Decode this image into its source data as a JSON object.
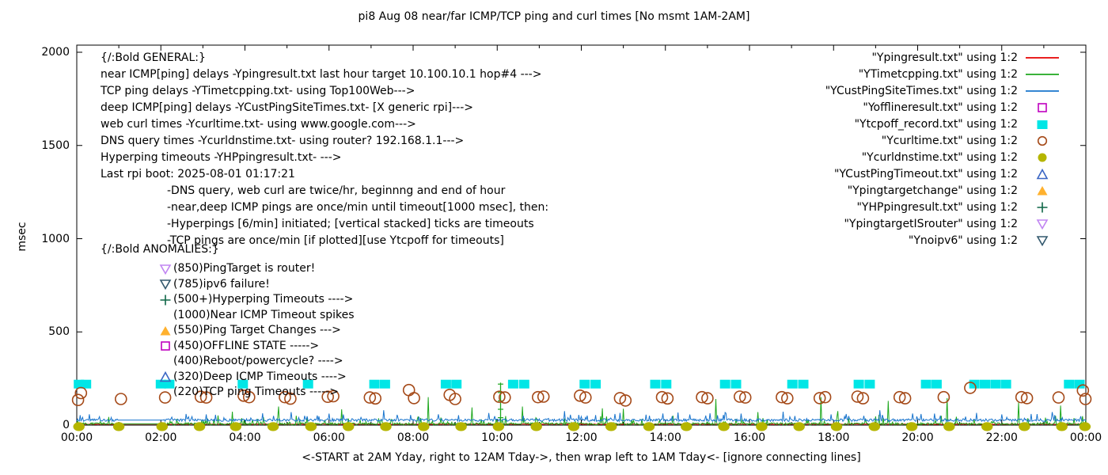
{
  "title": "pi8 Aug 08  near/far ICMP/TCP ping and curl times [No msmt 1AM-2AM]",
  "xlabel": "<-START at 2AM Yday, right to 12AM Tday->, then wrap left to 1AM Tday<- [ignore connecting lines]",
  "general": {
    "lines": [
      {
        "text": "{/:Bold GENERAL:}",
        "indent": 0
      },
      {
        "text": "near ICMP[ping] delays -Ypingresult.txt last hour target 10.100.10.1 hop#4 --->",
        "indent": 0
      },
      {
        "text": "TCP ping delays -YTimetcpping.txt- using Top100Web--->",
        "indent": 0
      },
      {
        "text": "deep ICMP[ping] delays -YCustPingSiteTimes.txt- [X generic rpi]--->",
        "indent": 0
      },
      {
        "text": "web curl times -Ycurltime.txt- using www.google.com--->",
        "indent": 0
      },
      {
        "text": "DNS query times -Ycurldnstime.txt- using router? 192.168.1.1--->",
        "indent": 0
      },
      {
        "text": "Hyperping timeouts -YHPpingresult.txt- --->",
        "indent": 0
      },
      {
        "text": "Last rpi boot: 2025-08-01 01:17:21",
        "indent": 0
      },
      {
        "text": "-DNS query, web curl are twice/hr, beginnng and end of hour",
        "indent": 1
      },
      {
        "text": "-near,deep ICMP pings are once/min until timeout[1000 msec], then:",
        "indent": 1
      },
      {
        "text": "-Hyperpings [6/min] initiated; [vertical stacked] ticks are timeouts",
        "indent": 1
      },
      {
        "text": "-TCP pings are once/min [if plotted][use Ytcpoff for timeouts]",
        "indent": 1
      }
    ]
  },
  "anomalies": {
    "title": "{/:Bold ANOMALIES:}",
    "rows": [
      {
        "marker": "odown",
        "color": "#c185f2",
        "text": "(850)PingTarget is router!"
      },
      {
        "marker": "odown",
        "color": "#33596e",
        "text": "(785)ipv6 failure!"
      },
      {
        "marker": "plus",
        "color": "#0e6647",
        "text": "(500+)Hyperping Timeouts ---->"
      },
      {
        "marker": "none",
        "color": "#000000",
        "text": "(1000)Near ICMP Timeout spikes"
      },
      {
        "marker": "ftri",
        "color": "#ffb12e",
        "text": "(550)Ping Target Changes --->"
      },
      {
        "marker": "osquare",
        "color": "#bf00bf",
        "text": "(450)OFFLINE STATE ----->"
      },
      {
        "marker": "none",
        "color": "#000000",
        "text": "(400)Reboot/powercycle? ---->"
      },
      {
        "marker": "otri",
        "color": "#3a66c4",
        "text": "(320)Deep ICMP Timeouts ---->"
      },
      {
        "marker": "none",
        "color": "#000000",
        "text": "(220)TCP ping Timeouts ----->"
      }
    ]
  },
  "legend": [
    {
      "label": "\"Ypingresult.txt\" using 1:2",
      "marker": "line",
      "color": "#e60000"
    },
    {
      "label": "\"YTimetcpping.txt\" using 1:2",
      "marker": "line",
      "color": "#1ea71e"
    },
    {
      "label": "\"YCustPingSiteTimes.txt\" using 1:2",
      "marker": "line",
      "color": "#1874cd"
    },
    {
      "label": "\"Yofflineresult.txt\" using 1:2",
      "marker": "osquare",
      "color": "#bf00bf"
    },
    {
      "label": "\"Ytcpoff_record.txt\" using 1:2",
      "marker": "fsquare",
      "color": "#00e6e6"
    },
    {
      "label": "\"Ycurltime.txt\" using 1:2",
      "marker": "ocircle",
      "color": "#a54a19"
    },
    {
      "label": "\"Ycurldnstime.txt\" using 1:2",
      "marker": "fcircle",
      "color": "#b5b500"
    },
    {
      "label": "\"YCustPingTimeout.txt\" using 1:2",
      "marker": "otri",
      "color": "#3a66c4"
    },
    {
      "label": "\"Ypingtargetchange\" using 1:2",
      "marker": "ftri",
      "color": "#ffb12e"
    },
    {
      "label": "\"YHPpingresult.txt\" using 1:2",
      "marker": "plus",
      "color": "#0e6647"
    },
    {
      "label": "\"YpingtargetISrouter\" using 1:2",
      "marker": "odown",
      "color": "#c185f2"
    },
    {
      "label": "\"Ynoipv6\" using 1:2",
      "marker": "odown",
      "color": "#33596e"
    }
  ],
  "chart_data": {
    "type": "line",
    "title": "pi8 Aug 08  near/far ICMP/TCP ping and curl times [No msmt 1AM-2AM]",
    "x_axis": {
      "tick_labels": [
        "00:00",
        "02:00",
        "04:00",
        "06:00",
        "08:00",
        "10:00",
        "12:00",
        "14:00",
        "16:00",
        "18:00",
        "20:00",
        "22:00",
        "00:00"
      ],
      "tick_hours": [
        0,
        2,
        4,
        6,
        8,
        10,
        12,
        14,
        16,
        18,
        20,
        22,
        24
      ],
      "minor_tick_every_hour": true,
      "range_hours": [
        0,
        24
      ]
    },
    "y_axis": {
      "label": "msec",
      "ticks": [
        0,
        500,
        1000,
        1500,
        2000
      ],
      "range": [
        0,
        2040
      ]
    },
    "gap_hours": [
      1.0,
      2.05
    ],
    "sample_step_hours": 0.02,
    "noise_seed": 1337,
    "series": [
      {
        "name": "Ypingresult.txt",
        "color": "#e60000",
        "baseline": 5,
        "noise": 1.5,
        "jitter_chance": 0,
        "jitter_max": 0,
        "spikes": []
      },
      {
        "name": "YTimetcpping.txt",
        "color": "#1ea71e",
        "baseline": 7,
        "noise": 6,
        "jitter_chance": 0.1,
        "jitter_max": 45,
        "spikes": [
          [
            3.7,
            72
          ],
          [
            4.8,
            100
          ],
          [
            6.3,
            85
          ],
          [
            8.36,
            150
          ],
          [
            9.4,
            95
          ],
          [
            10.6,
            100
          ],
          [
            12.5,
            90
          ],
          [
            13.0,
            88
          ],
          [
            15.2,
            140
          ],
          [
            16.2,
            70
          ],
          [
            17.7,
            150
          ],
          [
            18.1,
            75
          ],
          [
            19.3,
            130
          ],
          [
            20.7,
            145
          ],
          [
            22.4,
            120
          ],
          [
            23.4,
            105
          ]
        ]
      },
      {
        "name": "YCustPingSiteTimes.txt",
        "color": "#1874cd",
        "baseline": 27,
        "noise": 7,
        "jitter_chance": 0.08,
        "jitter_max": 35,
        "spikes": [
          [
            0.3,
            58
          ],
          [
            2.6,
            60
          ],
          [
            3.3,
            55
          ],
          [
            5.1,
            70
          ],
          [
            6.0,
            62
          ],
          [
            7.3,
            80
          ],
          [
            8.6,
            58
          ],
          [
            9.8,
            65
          ],
          [
            11.6,
            75
          ],
          [
            12.8,
            60
          ],
          [
            14.3,
            68
          ],
          [
            15.8,
            62
          ],
          [
            16.8,
            72
          ],
          [
            18.3,
            60
          ],
          [
            19.1,
            80
          ],
          [
            20.4,
            62
          ],
          [
            21.4,
            66
          ],
          [
            22.7,
            60
          ],
          [
            23.2,
            70
          ]
        ]
      }
    ],
    "markers": {
      "tcpoff_squares": {
        "name": "Ytcpoff_record.txt",
        "color": "#00e6e6",
        "y": 220,
        "x_hours": [
          0.05,
          0.22,
          2.0,
          2.2,
          3.95,
          5.5,
          7.08,
          7.33,
          8.78,
          9.03,
          10.38,
          10.64,
          12.08,
          12.34,
          13.76,
          14.02,
          15.42,
          15.68,
          17.02,
          17.28,
          18.6,
          18.86,
          20.2,
          20.45,
          21.35,
          21.6,
          21.85,
          22.1,
          23.6,
          23.85
        ]
      },
      "curl_circles": {
        "name": "Ycurltime.txt",
        "color": "#a54a19",
        "points": [
          [
            0.03,
            135
          ],
          [
            0.1,
            172
          ],
          [
            1.05,
            140
          ],
          [
            2.1,
            148
          ],
          [
            2.95,
            152
          ],
          [
            3.08,
            148
          ],
          [
            3.97,
            158
          ],
          [
            4.1,
            150
          ],
          [
            4.95,
            150
          ],
          [
            5.08,
            142
          ],
          [
            5.97,
            152
          ],
          [
            6.1,
            155
          ],
          [
            6.97,
            148
          ],
          [
            7.1,
            143
          ],
          [
            7.9,
            188
          ],
          [
            8.02,
            145
          ],
          [
            8.87,
            162
          ],
          [
            9.0,
            140
          ],
          [
            10.05,
            152
          ],
          [
            10.18,
            148
          ],
          [
            10.97,
            150
          ],
          [
            11.1,
            153
          ],
          [
            11.97,
            158
          ],
          [
            12.1,
            148
          ],
          [
            12.92,
            145
          ],
          [
            13.05,
            132
          ],
          [
            13.92,
            150
          ],
          [
            14.05,
            143
          ],
          [
            14.87,
            150
          ],
          [
            15.0,
            144
          ],
          [
            15.77,
            153
          ],
          [
            15.9,
            148
          ],
          [
            16.77,
            150
          ],
          [
            16.9,
            144
          ],
          [
            17.67,
            145
          ],
          [
            17.8,
            150
          ],
          [
            18.57,
            153
          ],
          [
            18.7,
            144
          ],
          [
            19.57,
            150
          ],
          [
            19.7,
            144
          ],
          [
            20.62,
            150
          ],
          [
            21.25,
            200
          ],
          [
            22.47,
            150
          ],
          [
            22.6,
            145
          ],
          [
            23.35,
            148
          ],
          [
            23.93,
            186
          ],
          [
            23.99,
            140
          ]
        ]
      },
      "dns_circles": {
        "name": "Ycurldnstime.txt",
        "color": "#b5b500",
        "y": -8,
        "x_hours": [
          0.05,
          1.0,
          2.03,
          2.92,
          3.78,
          4.67,
          5.57,
          6.46,
          7.35,
          8.25,
          9.14,
          10.03,
          10.93,
          11.82,
          12.71,
          13.61,
          14.5,
          15.39,
          16.29,
          17.18,
          18.07,
          18.97,
          19.86,
          20.75,
          21.65,
          22.54,
          23.43,
          23.98
        ]
      },
      "hyperping_stacks": {
        "name": "YHPpingresult.txt",
        "color": "#1ea71e",
        "items": [
          {
            "x": 10.08,
            "top": 228,
            "tick_levels": [
              40,
              85,
              130,
              175,
              220
            ]
          }
        ]
      }
    }
  }
}
